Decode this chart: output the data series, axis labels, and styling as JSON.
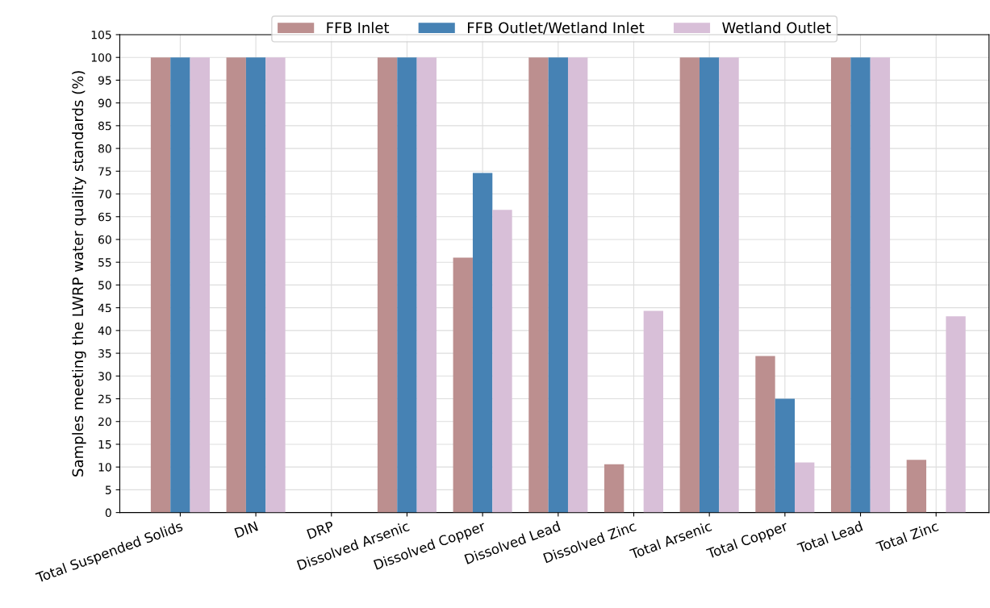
{
  "chart_data": {
    "type": "bar",
    "ylabel": "Samples meeting the LWRP water quality standards (%)",
    "categories": [
      "Total Suspended Solids",
      "DIN",
      "DRP",
      "Dissolved Arsenic",
      "Dissolved Copper",
      "Dissolved Lead",
      "Dissolved Zinc",
      "Total Arsenic",
      "Total Copper",
      "Total Lead",
      "Total Zinc"
    ],
    "series": [
      {
        "name": "FFB Inlet",
        "color": "#bc8f8f",
        "values": [
          100,
          100,
          0,
          100,
          56,
          100,
          10.6,
          100,
          34.4,
          100,
          11.6
        ]
      },
      {
        "name": "FFB Outlet/Wetland Inlet",
        "color": "#4682b4",
        "values": [
          100,
          100,
          0,
          100,
          74.6,
          100,
          0,
          100,
          25,
          100,
          0
        ]
      },
      {
        "name": "Wetland Outlet",
        "color": "#d8bfd8",
        "values": [
          100,
          100,
          0,
          100,
          66.5,
          100,
          44.3,
          100,
          11,
          100,
          43.1
        ]
      }
    ],
    "ylim": [
      0,
      105
    ],
    "yticks": [
      0,
      5,
      10,
      15,
      20,
      25,
      30,
      35,
      40,
      45,
      50,
      55,
      60,
      65,
      70,
      75,
      80,
      85,
      90,
      95,
      100,
      105
    ],
    "grid": true,
    "legend": "top"
  }
}
